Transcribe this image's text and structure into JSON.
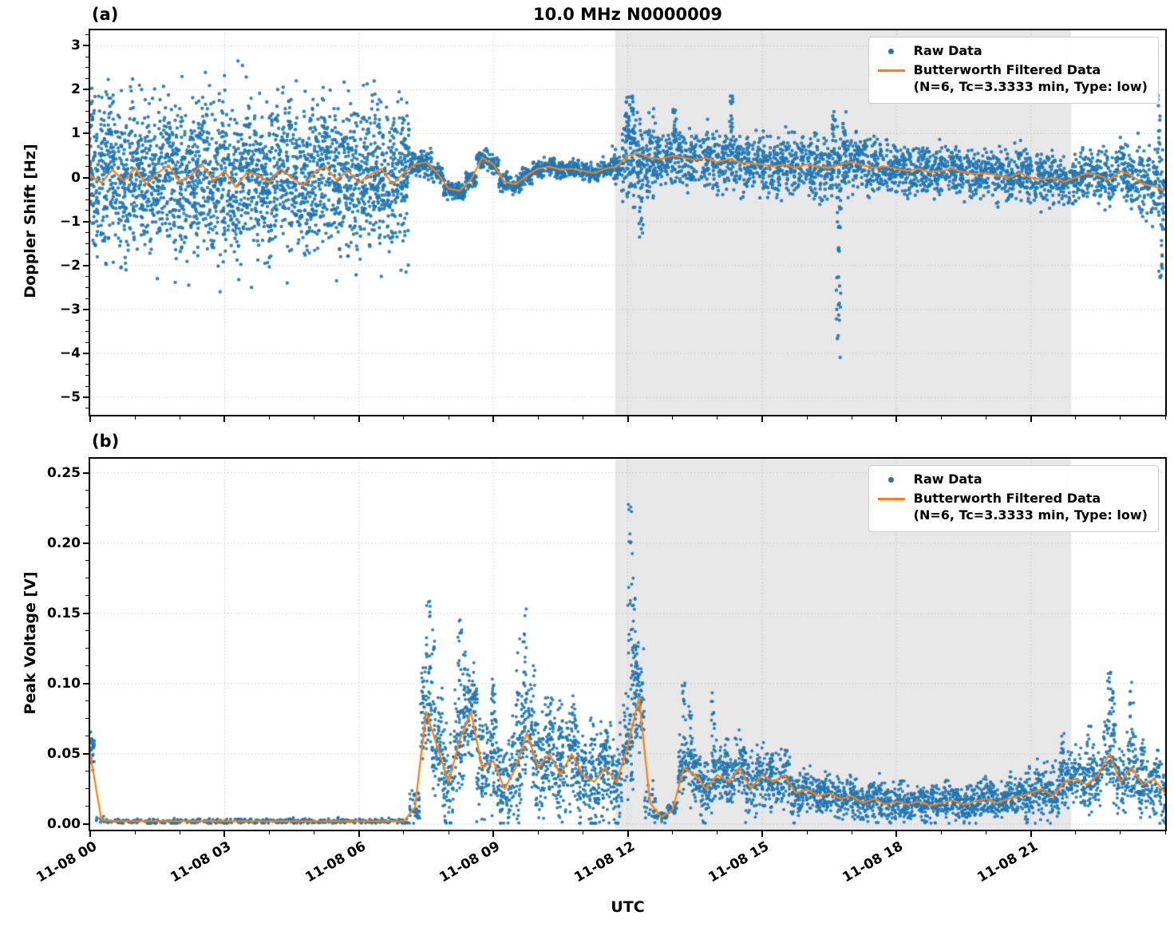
{
  "title": "10.0 MHz N0000009",
  "panel_labels": [
    "(a)",
    "(b)"
  ],
  "xlabel": "UTC",
  "colors": {
    "raw": "#1f77b4",
    "filtered": "#ff7f0e",
    "shade": "#e8e8e8",
    "grid": "#c7c7c7"
  },
  "legend": {
    "raw": "Raw Data",
    "filtered_line1": "Butterworth Filtered Data",
    "filtered_line2": "(N=6, Tc=3.3333 min, Type: low)"
  },
  "chart_data": [
    {
      "type": "scatter+line",
      "name": "doppler_shift",
      "ylabel": "Doppler Shift [Hz]",
      "ylim": [
        -5.4,
        3.35
      ],
      "yticks": [
        3,
        2,
        1,
        0,
        -1,
        -2,
        -3,
        -4,
        -5
      ],
      "ytick_labels": [
        "3",
        "2",
        "1",
        "0",
        "−1",
        "−2",
        "−3",
        "−4",
        "−5"
      ],
      "y_minor_step": 0.25,
      "xlim": [
        0,
        24
      ],
      "xticks": [
        0,
        3,
        6,
        9,
        12,
        15,
        18,
        21
      ],
      "xtick_labels": [
        "11-08 00",
        "11-08 03",
        "11-08 06",
        "11-08 09",
        "11-08 12",
        "11-08 15",
        "11-08 18",
        "11-08 21"
      ],
      "x_minor_step": 1,
      "show_xtick_labels": false,
      "shaded_region": {
        "x0": 11.72,
        "x1": 21.9
      },
      "x_start": 0,
      "x_step": 0.25,
      "seed": 7,
      "marker_radius": 2.2,
      "spike_points": 14,
      "filtered": [
        0.05,
        -0.12,
        0.18,
        -0.08,
        0.22,
        -0.15,
        0.1,
        0.28,
        -0.1,
        0.05,
        0.3,
        -0.08,
        0.15,
        -0.22,
        0.12,
        0.05,
        -0.12,
        0.2,
        0.0,
        -0.18,
        0.1,
        0.26,
        -0.06,
        0.16,
        -0.12,
        0.06,
        0.2,
        -0.15,
        0.1,
        0.3,
        0.35,
        0.1,
        -0.25,
        -0.3,
        -0.05,
        0.45,
        0.3,
        -0.1,
        -0.15,
        0.05,
        0.2,
        0.25,
        0.18,
        0.2,
        0.15,
        0.1,
        0.2,
        0.25,
        0.5,
        0.55,
        0.45,
        0.42,
        0.5,
        0.45,
        0.4,
        0.45,
        0.35,
        0.42,
        0.35,
        0.32,
        0.3,
        0.25,
        0.3,
        0.22,
        0.3,
        0.25,
        0.22,
        0.3,
        0.35,
        0.28,
        0.22,
        0.25,
        0.2,
        0.15,
        0.2,
        0.12,
        0.15,
        0.2,
        0.12,
        0.08,
        0.1,
        0.05,
        0.0,
        0.1,
        0.0,
        -0.05,
        0.0,
        -0.1,
        0.0,
        0.1,
        0.05,
        -0.05,
        0.15,
        0.05,
        -0.15,
        -0.2,
        -0.3
      ],
      "raw_spread_rle": [
        [
          29,
          1.25
        ],
        [
          2,
          0.25
        ],
        [
          16,
          0.15
        ],
        [
          1,
          0.3
        ],
        [
          2,
          0.9
        ],
        [
          1,
          0.65
        ],
        [
          20,
          0.48
        ],
        [
          20,
          0.42
        ],
        [
          3,
          0.5
        ],
        [
          3,
          0.65
        ]
      ],
      "raw_counts_rle": [
        [
          29,
          90
        ],
        [
          19,
          50
        ],
        [
          3,
          70
        ],
        [
          46,
          55
        ]
      ],
      "raw_spikes": [
        [
          12.0,
          1.9
        ],
        [
          12.1,
          1.6
        ],
        [
          12.3,
          -1.5
        ],
        [
          13.05,
          1.6
        ],
        [
          14.3,
          1.9
        ],
        [
          16.6,
          1.5
        ],
        [
          16.7,
          -4.9
        ],
        [
          16.72,
          -3.0
        ],
        [
          16.85,
          1.6
        ],
        [
          23.85,
          1.95
        ],
        [
          23.9,
          -2.3
        ]
      ],
      "raw_extra": [
        [
          0.35,
          1.95
        ],
        [
          1.1,
          2.1
        ],
        [
          2.05,
          2.3
        ],
        [
          3.3,
          2.65
        ],
        [
          3.4,
          2.55
        ],
        [
          4.6,
          2.2
        ],
        [
          5.2,
          2.05
        ],
        [
          6.1,
          2.1
        ],
        [
          6.9,
          1.95
        ],
        [
          0.8,
          -2.1
        ],
        [
          1.5,
          -2.3
        ],
        [
          2.2,
          -2.45
        ],
        [
          2.9,
          -2.6
        ],
        [
          3.6,
          -2.5
        ],
        [
          4.4,
          -2.4
        ],
        [
          5.5,
          -2.35
        ],
        [
          6.5,
          -2.25
        ],
        [
          7.05,
          -2.15
        ]
      ]
    },
    {
      "type": "scatter+line",
      "name": "peak_voltage",
      "ylabel": "Peak Voltage [V]",
      "ylim": [
        -0.004,
        0.26
      ],
      "yticks": [
        0.25,
        0.2,
        0.15,
        0.1,
        0.05,
        0
      ],
      "ytick_labels": [
        "0.25",
        "0.20",
        "0.15",
        "0.10",
        "0.05",
        "0.00"
      ],
      "y_minor_step": 0.0125,
      "xlim": [
        0,
        24
      ],
      "xticks": [
        0,
        3,
        6,
        9,
        12,
        15,
        18,
        21
      ],
      "xtick_labels": [
        "11-08 00",
        "11-08 03",
        "11-08 06",
        "11-08 09",
        "11-08 12",
        "11-08 15",
        "11-08 18",
        "11-08 21"
      ],
      "x_minor_step": 1,
      "show_xtick_labels": true,
      "shaded_region": {
        "x0": 11.72,
        "x1": 21.9
      },
      "x_start": 0,
      "x_step": 0.25,
      "seed": 11,
      "marker_radius": 2.0,
      "spike_points": 14,
      "clamp_min": 0.0005,
      "filtered": [
        0.05,
        0.003,
        0.002,
        0.002,
        0.002,
        0.002,
        0.002,
        0.002,
        0.002,
        0.002,
        0.002,
        0.002,
        0.002,
        0.002,
        0.002,
        0.002,
        0.002,
        0.002,
        0.002,
        0.002,
        0.002,
        0.002,
        0.002,
        0.002,
        0.002,
        0.002,
        0.002,
        0.002,
        0.002,
        0.012,
        0.08,
        0.055,
        0.03,
        0.06,
        0.08,
        0.04,
        0.045,
        0.025,
        0.04,
        0.065,
        0.04,
        0.05,
        0.035,
        0.05,
        0.035,
        0.03,
        0.04,
        0.03,
        0.055,
        0.09,
        0.015,
        0.005,
        0.01,
        0.04,
        0.035,
        0.025,
        0.035,
        0.03,
        0.04,
        0.025,
        0.035,
        0.03,
        0.035,
        0.022,
        0.025,
        0.02,
        0.022,
        0.018,
        0.02,
        0.015,
        0.018,
        0.014,
        0.016,
        0.014,
        0.016,
        0.013,
        0.015,
        0.017,
        0.014,
        0.016,
        0.018,
        0.015,
        0.018,
        0.02,
        0.022,
        0.025,
        0.02,
        0.03,
        0.032,
        0.028,
        0.035,
        0.05,
        0.03,
        0.04,
        0.028,
        0.032,
        0.022
      ],
      "raw_spread_rle": [
        [
          1,
          0.012
        ],
        [
          28,
          0.0015
        ],
        [
          1,
          0.008
        ],
        [
          20,
          0.025
        ],
        [
          1,
          0.01
        ],
        [
          2,
          0.004
        ],
        [
          11,
          0.016
        ],
        [
          20,
          0.01
        ],
        [
          7,
          0.014
        ],
        [
          1,
          0.022
        ],
        [
          5,
          0.016
        ]
      ],
      "raw_counts_rle": [
        [
          1,
          25
        ],
        [
          28,
          15
        ],
        [
          1,
          40
        ],
        [
          20,
          70
        ],
        [
          1,
          30
        ],
        [
          2,
          25
        ],
        [
          44,
          60
        ]
      ],
      "raw_spikes": [
        [
          0.05,
          0.062
        ],
        [
          7.55,
          0.178
        ],
        [
          7.65,
          0.155
        ],
        [
          8.25,
          0.15
        ],
        [
          8.35,
          0.125
        ],
        [
          8.6,
          0.1
        ],
        [
          9.0,
          0.107
        ],
        [
          9.55,
          0.137
        ],
        [
          9.7,
          0.156
        ],
        [
          9.9,
          0.12
        ],
        [
          10.25,
          0.096
        ],
        [
          10.5,
          0.09
        ],
        [
          10.8,
          0.092
        ],
        [
          11.2,
          0.078
        ],
        [
          11.5,
          0.07
        ],
        [
          12.05,
          0.247
        ],
        [
          12.1,
          0.21
        ],
        [
          12.15,
          0.165
        ],
        [
          12.2,
          0.13
        ],
        [
          13.25,
          0.105
        ],
        [
          13.4,
          0.09
        ],
        [
          13.9,
          0.096
        ],
        [
          14.2,
          0.062
        ],
        [
          14.6,
          0.055
        ],
        [
          15.2,
          0.05
        ],
        [
          21.7,
          0.065
        ],
        [
          22.3,
          0.07
        ],
        [
          22.75,
          0.112
        ],
        [
          22.85,
          0.095
        ],
        [
          23.25,
          0.105
        ],
        [
          23.5,
          0.06
        ]
      ],
      "raw_extra": []
    }
  ]
}
